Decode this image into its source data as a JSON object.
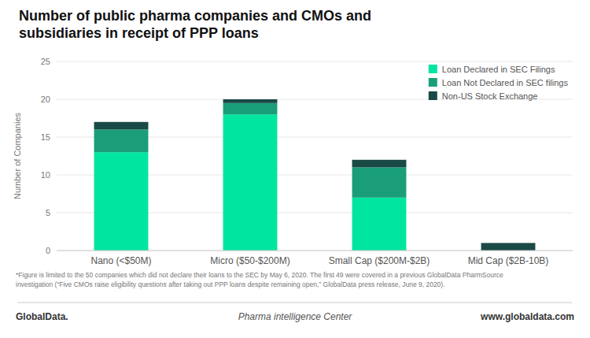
{
  "chart_data": {
    "type": "bar",
    "title": "Number of public pharma companies and CMOs and\nsubsidiaries in receipt of PPP loans",
    "y_label": "Number of Companies",
    "categories": [
      "Nano (<$50M)",
      "Micro ($50-$200M)",
      "Small Cap ($200M-$2B)",
      "Mid Cap ($2B-10B)"
    ],
    "series": [
      {
        "name": "Loan Declared in SEC Filings",
        "color": "#00E5A0",
        "values": [
          13,
          18,
          7,
          0
        ]
      },
      {
        "name": "Loan Not Declared in SEC filings",
        "color": "#1A9E7A",
        "values": [
          3,
          1.5,
          4,
          0
        ]
      },
      {
        "name": "Non-US Stock Exchange",
        "color": "#1A4A45",
        "values": [
          1,
          0.5,
          1,
          1
        ]
      }
    ],
    "stacked": true,
    "ylim": [
      0,
      25
    ],
    "yticks": [
      0,
      5,
      10,
      15,
      20,
      25
    ],
    "grid": true,
    "legend": "upper right",
    "annotations": [
      "*Figure is limited to the 50 companies which did not declare their loans to the SEC by May 6, 2020. The first 49 were covered in a previous GlobalData PharmSource\ninvestigation (“Five CMOs raise eligibility questions after taking out PPP loans despite remaining open,” GlobalData press release, June 9, 2020).",
      "GlobalData.",
      "Pharma intelligence Center",
      "www.globaldata.com"
    ]
  }
}
